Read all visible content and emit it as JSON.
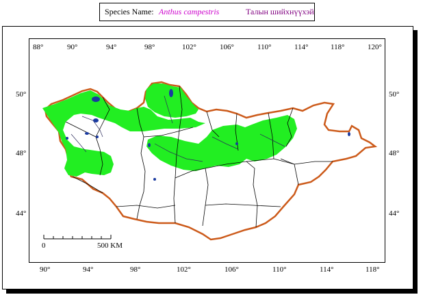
{
  "header": {
    "species_label": "Species Name:",
    "scientific_name": "Anthus campestris",
    "local_name": "Талын шийхнүүхэй"
  },
  "colors": {
    "scientific_name": "#cc00cc",
    "local_name": "#800080",
    "range_fill": "#22ee22",
    "border": "#cc5a1a",
    "lakes": "#1a3aa0"
  },
  "map": {
    "top_longitude_ticks": [
      "88°",
      "90°",
      "94°",
      "98°",
      "102°",
      "106°",
      "110°",
      "114°",
      "118°",
      "120°"
    ],
    "bottom_longitude_ticks": [
      "90°",
      "94°",
      "98°",
      "102°",
      "106°",
      "110°",
      "114°",
      "118°"
    ],
    "left_latitude_ticks": [
      "50°",
      "48°",
      "44°"
    ],
    "right_latitude_ticks": [
      "50°",
      "48°",
      "44°"
    ],
    "scale_bar": {
      "start_label": "0",
      "end_label": "500 KM"
    }
  }
}
